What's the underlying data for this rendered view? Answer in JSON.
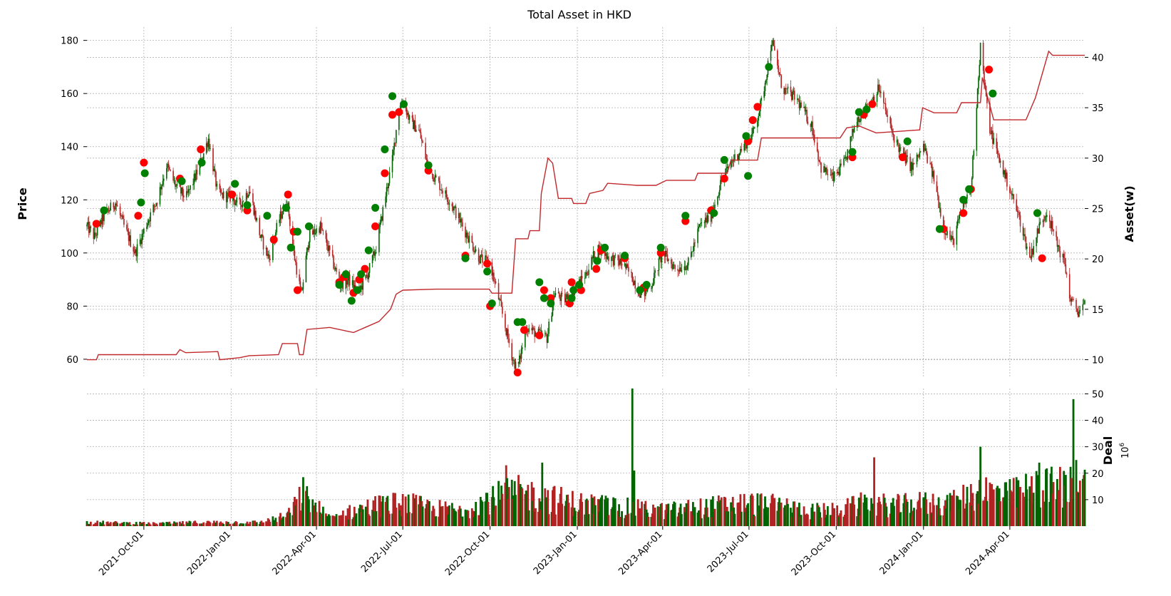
{
  "chart_data": {
    "type": "candlestick",
    "title": "Total Asset in HKD",
    "ylabel": "Price",
    "y2label": "Asset(w)",
    "volume_label": "Deal",
    "volume_unit": "10^6",
    "x_ticks": [
      "2021-Oct-01",
      "2022-Jan-01",
      "2022-Apr-01",
      "2022-Jul-01",
      "2022-Oct-01",
      "2023-Jan-01",
      "2023-Apr-01",
      "2023-Jul-01",
      "2023-Oct-01",
      "2024-Jan-01",
      "2024-Apr-01"
    ],
    "x_range": [
      "2021-08-02",
      "2024-06-19"
    ],
    "price_ticks": [
      60,
      80,
      100,
      120,
      140,
      160,
      180
    ],
    "price_range": [
      53,
      185
    ],
    "asset_ticks": [
      10,
      15,
      20,
      25,
      30,
      35,
      40
    ],
    "asset_range": [
      8.2,
      43
    ],
    "volume_ticks": [
      10,
      20,
      30,
      40,
      50
    ],
    "volume_range": [
      0,
      52
    ],
    "grid": true,
    "colors": {
      "up": "#006400",
      "down": "#b22222",
      "buy_marker": "#008000",
      "sell_marker": "#ff0000",
      "asset_line": "#c0282c",
      "grid": "#b0b0b0"
    },
    "price_path": [
      [
        "2021-08-02",
        110
      ],
      [
        "2021-08-10",
        106
      ],
      [
        "2021-08-20",
        114
      ],
      [
        "2021-09-01",
        119
      ],
      [
        "2021-09-10",
        110
      ],
      [
        "2021-09-22",
        100
      ],
      [
        "2021-10-05",
        112
      ],
      [
        "2021-10-15",
        120
      ],
      [
        "2021-10-25",
        133
      ],
      [
        "2021-11-05",
        124
      ],
      [
        "2021-11-15",
        121
      ],
      [
        "2021-11-28",
        132
      ],
      [
        "2021-12-08",
        143
      ],
      [
        "2021-12-18",
        122
      ],
      [
        "2022-01-01",
        121
      ],
      [
        "2022-01-10",
        118
      ],
      [
        "2022-01-20",
        124
      ],
      [
        "2022-02-01",
        106
      ],
      [
        "2022-02-10",
        98
      ],
      [
        "2022-02-20",
        112
      ],
      [
        "2022-03-01",
        120
      ],
      [
        "2022-03-08",
        100
      ],
      [
        "2022-03-16",
        84
      ],
      [
        "2022-03-24",
        106
      ],
      [
        "2022-04-05",
        110
      ],
      [
        "2022-04-15",
        100
      ],
      [
        "2022-04-26",
        88
      ],
      [
        "2022-05-05",
        90
      ],
      [
        "2022-05-15",
        85
      ],
      [
        "2022-05-25",
        92
      ],
      [
        "2022-06-03",
        102
      ],
      [
        "2022-06-12",
        120
      ],
      [
        "2022-06-20",
        135
      ],
      [
        "2022-06-26",
        152
      ],
      [
        "2022-07-01",
        158
      ],
      [
        "2022-07-08",
        150
      ],
      [
        "2022-07-18",
        146
      ],
      [
        "2022-07-28",
        132
      ],
      [
        "2022-08-08",
        126
      ],
      [
        "2022-08-22",
        118
      ],
      [
        "2022-09-05",
        108
      ],
      [
        "2022-09-20",
        98
      ],
      [
        "2022-10-01",
        96
      ],
      [
        "2022-10-12",
        80
      ],
      [
        "2022-10-25",
        60
      ],
      [
        "2022-10-30",
        56
      ],
      [
        "2022-11-08",
        72
      ],
      [
        "2022-11-18",
        70
      ],
      [
        "2022-11-30",
        68
      ],
      [
        "2022-12-08",
        85
      ],
      [
        "2022-12-18",
        82
      ],
      [
        "2022-12-28",
        86
      ],
      [
        "2023-01-10",
        92
      ],
      [
        "2023-01-22",
        102
      ],
      [
        "2023-02-05",
        98
      ],
      [
        "2023-02-18",
        96
      ],
      [
        "2023-03-01",
        90
      ],
      [
        "2023-03-10",
        84
      ],
      [
        "2023-03-20",
        88
      ],
      [
        "2023-04-01",
        100
      ],
      [
        "2023-04-15",
        94
      ],
      [
        "2023-04-28",
        96
      ],
      [
        "2023-05-10",
        110
      ],
      [
        "2023-05-22",
        114
      ],
      [
        "2023-06-01",
        126
      ],
      [
        "2023-06-12",
        134
      ],
      [
        "2023-06-25",
        140
      ],
      [
        "2023-07-05",
        145
      ],
      [
        "2023-07-15",
        158
      ],
      [
        "2023-07-25",
        180
      ],
      [
        "2023-08-05",
        162
      ],
      [
        "2023-08-20",
        158
      ],
      [
        "2023-09-05",
        148
      ],
      [
        "2023-09-15",
        132
      ],
      [
        "2023-09-28",
        128
      ],
      [
        "2023-10-10",
        134
      ],
      [
        "2023-10-22",
        150
      ],
      [
        "2023-11-05",
        156
      ],
      [
        "2023-11-15",
        162
      ],
      [
        "2023-11-28",
        146
      ],
      [
        "2023-12-08",
        138
      ],
      [
        "2023-12-20",
        132
      ],
      [
        "2024-01-01",
        140
      ],
      [
        "2024-01-12",
        128
      ],
      [
        "2024-01-22",
        110
      ],
      [
        "2024-02-01",
        104
      ],
      [
        "2024-02-10",
        116
      ],
      [
        "2024-02-20",
        124
      ],
      [
        "2024-03-01",
        178
      ],
      [
        "2024-03-10",
        148
      ],
      [
        "2024-03-20",
        136
      ],
      [
        "2024-04-01",
        124
      ],
      [
        "2024-04-12",
        112
      ],
      [
        "2024-04-22",
        98
      ],
      [
        "2024-05-02",
        110
      ],
      [
        "2024-05-10",
        116
      ],
      [
        "2024-05-20",
        104
      ],
      [
        "2024-05-29",
        96
      ],
      [
        "2024-06-04",
        82
      ],
      [
        "2024-06-12",
        78
      ],
      [
        "2024-06-19",
        80
      ]
    ],
    "asset_path": [
      [
        "2021-08-02",
        10.0
      ],
      [
        "2021-08-12",
        10.0
      ],
      [
        "2021-08-14",
        10.5
      ],
      [
        "2021-11-04",
        10.5
      ],
      [
        "2021-11-08",
        11.0
      ],
      [
        "2021-11-14",
        10.7
      ],
      [
        "2021-12-18",
        10.8
      ],
      [
        "2021-12-20",
        10.0
      ],
      [
        "2022-01-10",
        10.2
      ],
      [
        "2022-01-20",
        10.4
      ],
      [
        "2022-02-20",
        10.5
      ],
      [
        "2022-02-24",
        11.6
      ],
      [
        "2022-03-12",
        11.6
      ],
      [
        "2022-03-14",
        10.5
      ],
      [
        "2022-03-18",
        10.5
      ],
      [
        "2022-03-22",
        13.0
      ],
      [
        "2022-04-15",
        13.2
      ],
      [
        "2022-05-10",
        12.7
      ],
      [
        "2022-06-06",
        13.8
      ],
      [
        "2022-06-18",
        15.0
      ],
      [
        "2022-06-24",
        16.5
      ],
      [
        "2022-07-01",
        16.9
      ],
      [
        "2022-08-05",
        17.0
      ],
      [
        "2022-09-30",
        17.0
      ],
      [
        "2022-10-03",
        16.6
      ],
      [
        "2022-10-24",
        16.6
      ],
      [
        "2022-10-28",
        22.0
      ],
      [
        "2022-11-10",
        22.0
      ],
      [
        "2022-11-12",
        22.8
      ],
      [
        "2022-11-22",
        22.8
      ],
      [
        "2022-11-24",
        26.5
      ],
      [
        "2022-12-01",
        30.0
      ],
      [
        "2022-12-06",
        29.5
      ],
      [
        "2022-12-12",
        26.0
      ],
      [
        "2022-12-26",
        26.0
      ],
      [
        "2022-12-28",
        25.5
      ],
      [
        "2023-01-10",
        25.5
      ],
      [
        "2023-01-14",
        26.5
      ],
      [
        "2023-01-28",
        26.8
      ],
      [
        "2023-02-02",
        27.5
      ],
      [
        "2023-03-05",
        27.3
      ],
      [
        "2023-03-25",
        27.3
      ],
      [
        "2023-04-05",
        27.8
      ],
      [
        "2023-05-05",
        27.8
      ],
      [
        "2023-05-08",
        28.5
      ],
      [
        "2023-06-08",
        28.5
      ],
      [
        "2023-06-12",
        29.8
      ],
      [
        "2023-07-10",
        29.8
      ],
      [
        "2023-07-14",
        32.0
      ],
      [
        "2023-09-25",
        32.0
      ],
      [
        "2023-10-05",
        32.0
      ],
      [
        "2023-10-12",
        33.0
      ],
      [
        "2023-10-25",
        33.2
      ],
      [
        "2023-11-12",
        32.5
      ],
      [
        "2023-12-28",
        32.8
      ],
      [
        "2023-12-31",
        35.0
      ],
      [
        "2024-01-12",
        34.5
      ],
      [
        "2024-02-05",
        34.5
      ],
      [
        "2024-02-10",
        35.5
      ],
      [
        "2024-03-01",
        35.5
      ],
      [
        "2024-03-03",
        38.0
      ],
      [
        "2024-03-15",
        33.8
      ],
      [
        "2024-04-18",
        33.8
      ],
      [
        "2024-04-28",
        36.0
      ],
      [
        "2024-05-12",
        40.6
      ],
      [
        "2024-05-16",
        40.2
      ],
      [
        "2024-06-19",
        40.2
      ]
    ],
    "volume_path": [
      [
        "2021-08-02",
        1.5
      ],
      [
        "2021-10-15",
        1.0
      ],
      [
        "2021-12-01",
        1.5
      ],
      [
        "2022-02-01",
        1.5
      ],
      [
        "2022-03-01",
        4
      ],
      [
        "2022-03-18",
        12
      ],
      [
        "2022-04-15",
        3
      ],
      [
        "2022-05-01",
        5
      ],
      [
        "2022-06-01",
        8
      ],
      [
        "2022-07-01",
        9
      ],
      [
        "2022-08-01",
        7
      ],
      [
        "2022-09-01",
        6
      ],
      [
        "2022-10-01",
        11
      ],
      [
        "2022-11-01",
        13
      ],
      [
        "2022-12-01",
        11
      ],
      [
        "2023-01-01",
        9
      ],
      [
        "2023-02-01",
        8
      ],
      [
        "2023-03-01",
        7
      ],
      [
        "2023-04-01",
        6
      ],
      [
        "2023-05-01",
        7
      ],
      [
        "2023-06-01",
        8
      ],
      [
        "2023-07-01",
        9
      ],
      [
        "2023-08-01",
        8
      ],
      [
        "2023-09-01",
        6
      ],
      [
        "2023-10-01",
        6
      ],
      [
        "2023-11-01",
        9
      ],
      [
        "2023-12-01",
        8
      ],
      [
        "2024-01-01",
        9
      ],
      [
        "2024-02-01",
        9
      ],
      [
        "2024-03-01",
        14
      ],
      [
        "2024-04-01",
        12
      ],
      [
        "2024-05-01",
        15
      ],
      [
        "2024-06-19",
        16
      ]
    ],
    "volume_spikes": [
      [
        "2022-03-18",
        18.5
      ],
      [
        "2022-03-20",
        15
      ],
      [
        "2022-06-25",
        20
      ],
      [
        "2022-10-18",
        23
      ],
      [
        "2022-11-12",
        27
      ],
      [
        "2022-11-25",
        24
      ],
      [
        "2023-02-28",
        52
      ],
      [
        "2023-03-02",
        21
      ],
      [
        "2023-11-10",
        26
      ],
      [
        "2024-03-01",
        30
      ],
      [
        "2024-03-10",
        24
      ],
      [
        "2024-04-20",
        27
      ],
      [
        "2024-05-02",
        24
      ],
      [
        "2024-06-07",
        48
      ],
      [
        "2024-06-10",
        25
      ]
    ],
    "buy_markers": [
      [
        "2021-08-20",
        116
      ],
      [
        "2021-09-28",
        119
      ],
      [
        "2021-10-02",
        130
      ],
      [
        "2021-11-10",
        127
      ],
      [
        "2021-12-01",
        134
      ],
      [
        "2022-01-05",
        126
      ],
      [
        "2022-01-18",
        118
      ],
      [
        "2022-02-08",
        114
      ],
      [
        "2022-02-28",
        117
      ],
      [
        "2022-03-05",
        102
      ],
      [
        "2022-03-12",
        108
      ],
      [
        "2022-03-24",
        110
      ],
      [
        "2022-04-25",
        88
      ],
      [
        "2022-05-02",
        92
      ],
      [
        "2022-05-08",
        82
      ],
      [
        "2022-05-14",
        86
      ],
      [
        "2022-05-18",
        92
      ],
      [
        "2022-05-26",
        101
      ],
      [
        "2022-06-02",
        117
      ],
      [
        "2022-06-12",
        139
      ],
      [
        "2022-06-20",
        159
      ],
      [
        "2022-07-02",
        156
      ],
      [
        "2022-07-28",
        133
      ],
      [
        "2022-09-05",
        98
      ],
      [
        "2022-09-28",
        93
      ],
      [
        "2022-10-03",
        81
      ],
      [
        "2022-10-30",
        74
      ],
      [
        "2022-11-04",
        74
      ],
      [
        "2022-11-22",
        89
      ],
      [
        "2022-11-27",
        83
      ],
      [
        "2022-12-04",
        81
      ],
      [
        "2022-12-26",
        83
      ],
      [
        "2022-12-28",
        86
      ],
      [
        "2023-01-03",
        88
      ],
      [
        "2023-01-22",
        97
      ],
      [
        "2023-01-30",
        102
      ],
      [
        "2023-02-20",
        99
      ],
      [
        "2023-03-08",
        86
      ],
      [
        "2023-03-15",
        88
      ],
      [
        "2023-03-30",
        102
      ],
      [
        "2023-04-25",
        114
      ],
      [
        "2023-05-25",
        115
      ],
      [
        "2023-06-05",
        135
      ],
      [
        "2023-06-28",
        144
      ],
      [
        "2023-06-30",
        129
      ],
      [
        "2023-07-22",
        170
      ],
      [
        "2023-10-18",
        138
      ],
      [
        "2023-10-25",
        153
      ],
      [
        "2023-11-02",
        154
      ],
      [
        "2023-12-15",
        142
      ],
      [
        "2024-01-18",
        109
      ],
      [
        "2024-02-12",
        120
      ],
      [
        "2024-02-18",
        124
      ],
      [
        "2024-03-14",
        160
      ],
      [
        "2024-04-30",
        115
      ]
    ],
    "sell_markers": [
      [
        "2021-08-12",
        111
      ],
      [
        "2021-09-25",
        114
      ],
      [
        "2021-10-01",
        134
      ],
      [
        "2021-11-08",
        128
      ],
      [
        "2021-11-30",
        139
      ],
      [
        "2022-01-02",
        122
      ],
      [
        "2022-01-18",
        116
      ],
      [
        "2022-02-15",
        105
      ],
      [
        "2022-03-02",
        122
      ],
      [
        "2022-03-08",
        108
      ],
      [
        "2022-03-12",
        86
      ],
      [
        "2022-04-25",
        89
      ],
      [
        "2022-04-30",
        91
      ],
      [
        "2022-05-10",
        85
      ],
      [
        "2022-05-16",
        90
      ],
      [
        "2022-05-22",
        94
      ],
      [
        "2022-06-02",
        110
      ],
      [
        "2022-06-12",
        130
      ],
      [
        "2022-06-20",
        152
      ],
      [
        "2022-06-27",
        153
      ],
      [
        "2022-07-28",
        131
      ],
      [
        "2022-09-05",
        99
      ],
      [
        "2022-09-28",
        96
      ],
      [
        "2022-10-01",
        80
      ],
      [
        "2022-10-30",
        55
      ],
      [
        "2022-11-06",
        71
      ],
      [
        "2022-11-22",
        69
      ],
      [
        "2022-11-27",
        86
      ],
      [
        "2022-12-04",
        83
      ],
      [
        "2022-12-24",
        81
      ],
      [
        "2022-12-26",
        89
      ],
      [
        "2023-01-05",
        86
      ],
      [
        "2023-01-21",
        94
      ],
      [
        "2023-01-26",
        101
      ],
      [
        "2023-02-20",
        98
      ],
      [
        "2023-03-12",
        87
      ],
      [
        "2023-03-30",
        100
      ],
      [
        "2023-04-25",
        112
      ],
      [
        "2023-05-22",
        116
      ],
      [
        "2023-06-05",
        128
      ],
      [
        "2023-06-30",
        142
      ],
      [
        "2023-07-05",
        150
      ],
      [
        "2023-07-10",
        155
      ],
      [
        "2023-10-18",
        136
      ],
      [
        "2023-10-30",
        152
      ],
      [
        "2023-11-08",
        156
      ],
      [
        "2023-12-10",
        136
      ],
      [
        "2024-01-22",
        109
      ],
      [
        "2024-02-12",
        115
      ],
      [
        "2024-02-20",
        124
      ],
      [
        "2024-03-10",
        169
      ],
      [
        "2024-05-05",
        98
      ]
    ]
  }
}
